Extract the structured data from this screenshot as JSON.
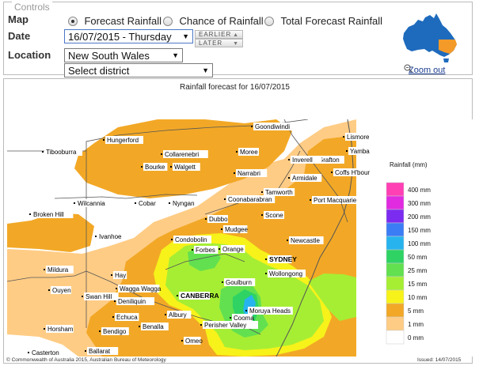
{
  "controls": {
    "title": "Controls",
    "map_label": "Map",
    "date_label": "Date",
    "location_label": "Location",
    "map_options": [
      {
        "label": "Forecast Rainfall",
        "selected": true
      },
      {
        "label": "Chance of Rainfall",
        "selected": false
      },
      {
        "label": "Total Forecast Rainfall",
        "selected": false
      }
    ],
    "date_value": "16/07/2015 - Thursday",
    "earlier_label": "EARLIER",
    "later_label": "LATER",
    "state_value": "New South Wales",
    "district_value": "Select district",
    "zoom_label": "Zoom out",
    "mini_map": {
      "land_color": "#1e6bbd",
      "selected_color": "#f39a29"
    }
  },
  "map": {
    "title": "Rainfall forecast for 16/07/2015",
    "copyright": "© Commonwealth of Australia 2015, Australian Bureau of Meteorology",
    "issued": "Issued: 14/07/2015",
    "legend_title": "Rainfall (mm)",
    "legend": [
      {
        "label": "400 mm",
        "color": "#ff3fb4"
      },
      {
        "label": "300 mm",
        "color": "#e02be0"
      },
      {
        "label": "200 mm",
        "color": "#7b2cf0"
      },
      {
        "label": "150 mm",
        "color": "#3b7df5"
      },
      {
        "label": "100 mm",
        "color": "#27b4ee"
      },
      {
        "label": "50 mm",
        "color": "#2ed364"
      },
      {
        "label": "25 mm",
        "color": "#62e050"
      },
      {
        "label": "15 mm",
        "color": "#a6ee34"
      },
      {
        "label": "10 mm",
        "color": "#f7f21a"
      },
      {
        "label": "5 mm",
        "color": "#f2a826"
      },
      {
        "label": "1 mm",
        "color": "#ffcc85"
      },
      {
        "label": "0 mm",
        "color": "#ffffff"
      }
    ],
    "towns": [
      "Goondiwindi",
      "Hungerford",
      "Lismore",
      "Moree",
      "Yamba",
      "Tibooburra",
      "Collarenebri",
      "Grafton",
      "Bourke",
      "Walgett",
      "Inverell",
      "Coffs H'bour",
      "Narrabri",
      "Armidale",
      "Tamworth",
      "Port Macquarie",
      "Wilcannia",
      "Cobar",
      "Nyngan",
      "Coonabarabran",
      "Broken Hill",
      "Dubbo",
      "Scone",
      "Ivanhoe",
      "Mudgee",
      "Newcastle",
      "Condobolin",
      "Forbes",
      "Orange",
      "SYDNEY",
      "Mildura",
      "Hay",
      "Wollongong",
      "Ouyen",
      "Goulburn",
      "Wagga Wagga",
      "CANBERRA",
      "Swan Hill",
      "Deniliquin",
      "Echuca",
      "Albury",
      "Moruya Heads",
      "Horsham",
      "Bendigo",
      "Benalla",
      "Cooma",
      "Perisher Valley",
      "Omeo",
      "Ballarat",
      "Casterton"
    ]
  }
}
